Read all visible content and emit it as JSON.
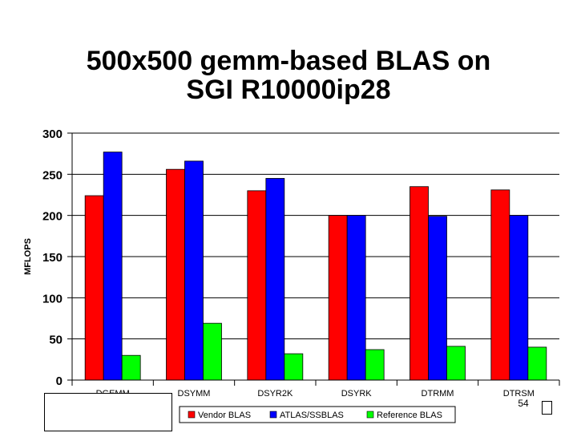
{
  "title_lines": [
    "500x500 gemm-based BLAS on",
    "SGI  R10000ip28"
  ],
  "page_number": "54",
  "chart_data": {
    "type": "bar",
    "categories": [
      "DGEMM",
      "DSYMM",
      "DSYR2K",
      "DSYRK",
      "DTRMM",
      "DTRSM"
    ],
    "series": [
      {
        "name": "Vendor BLAS",
        "color": "#ff0000",
        "values": [
          224,
          256,
          230,
          200,
          235,
          231
        ]
      },
      {
        "name": "ATLAS/SSBLAS",
        "color": "#0000ff",
        "values": [
          277,
          266,
          245,
          200,
          199,
          200
        ]
      },
      {
        "name": "Reference BLAS",
        "color": "#00ff00",
        "values": [
          30,
          69,
          32,
          37,
          41,
          40
        ]
      }
    ],
    "ylabel": "MFLOPS",
    "xlabel": "",
    "ylim": [
      0,
      300
    ],
    "yticks": [
      0,
      50,
      100,
      150,
      200,
      250,
      300
    ],
    "grid": true,
    "legend_position": "bottom"
  }
}
